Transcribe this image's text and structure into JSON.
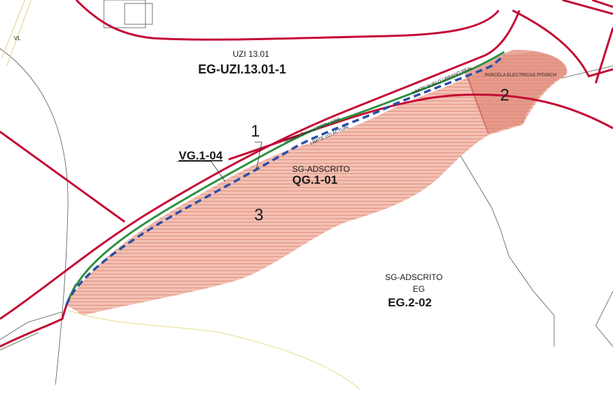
{
  "labels": {
    "vl": "VL",
    "uzi_zone": "UZI 13.01",
    "uzi_code": "EG-UZI.13.01-1",
    "vg_code": "VG.1-04",
    "sg_adscrito_1": "SG-ADSCRITO",
    "qg_code": "QG.1-01",
    "sg_adscrito_2": "SG-ADSCRITO",
    "eg": "EG",
    "eg_code": "EG.2-02",
    "num_1": "1",
    "num_2": "2",
    "num_3": "3",
    "limite_suelo_urbano": "LIMITE SUELO URBANO REAL",
    "parcela_electricas": "PARCELA ELECTRICAS PITARCH",
    "sistema_general": "Sistema General PGOU 1999",
    "limite_uzi": "LIMITE UZI ACTUAL"
  },
  "colors": {
    "boundary_red": "#c40a35",
    "hatch_fill": "#efb5a7",
    "hatch_line": "#e48d7a",
    "parcel_fill": "#e08c7c",
    "green_limit": "#2e9141",
    "blue_dashed": "#2b4fa8",
    "thin_lines": "#444444",
    "yellow_line": "#e6dc8a"
  }
}
